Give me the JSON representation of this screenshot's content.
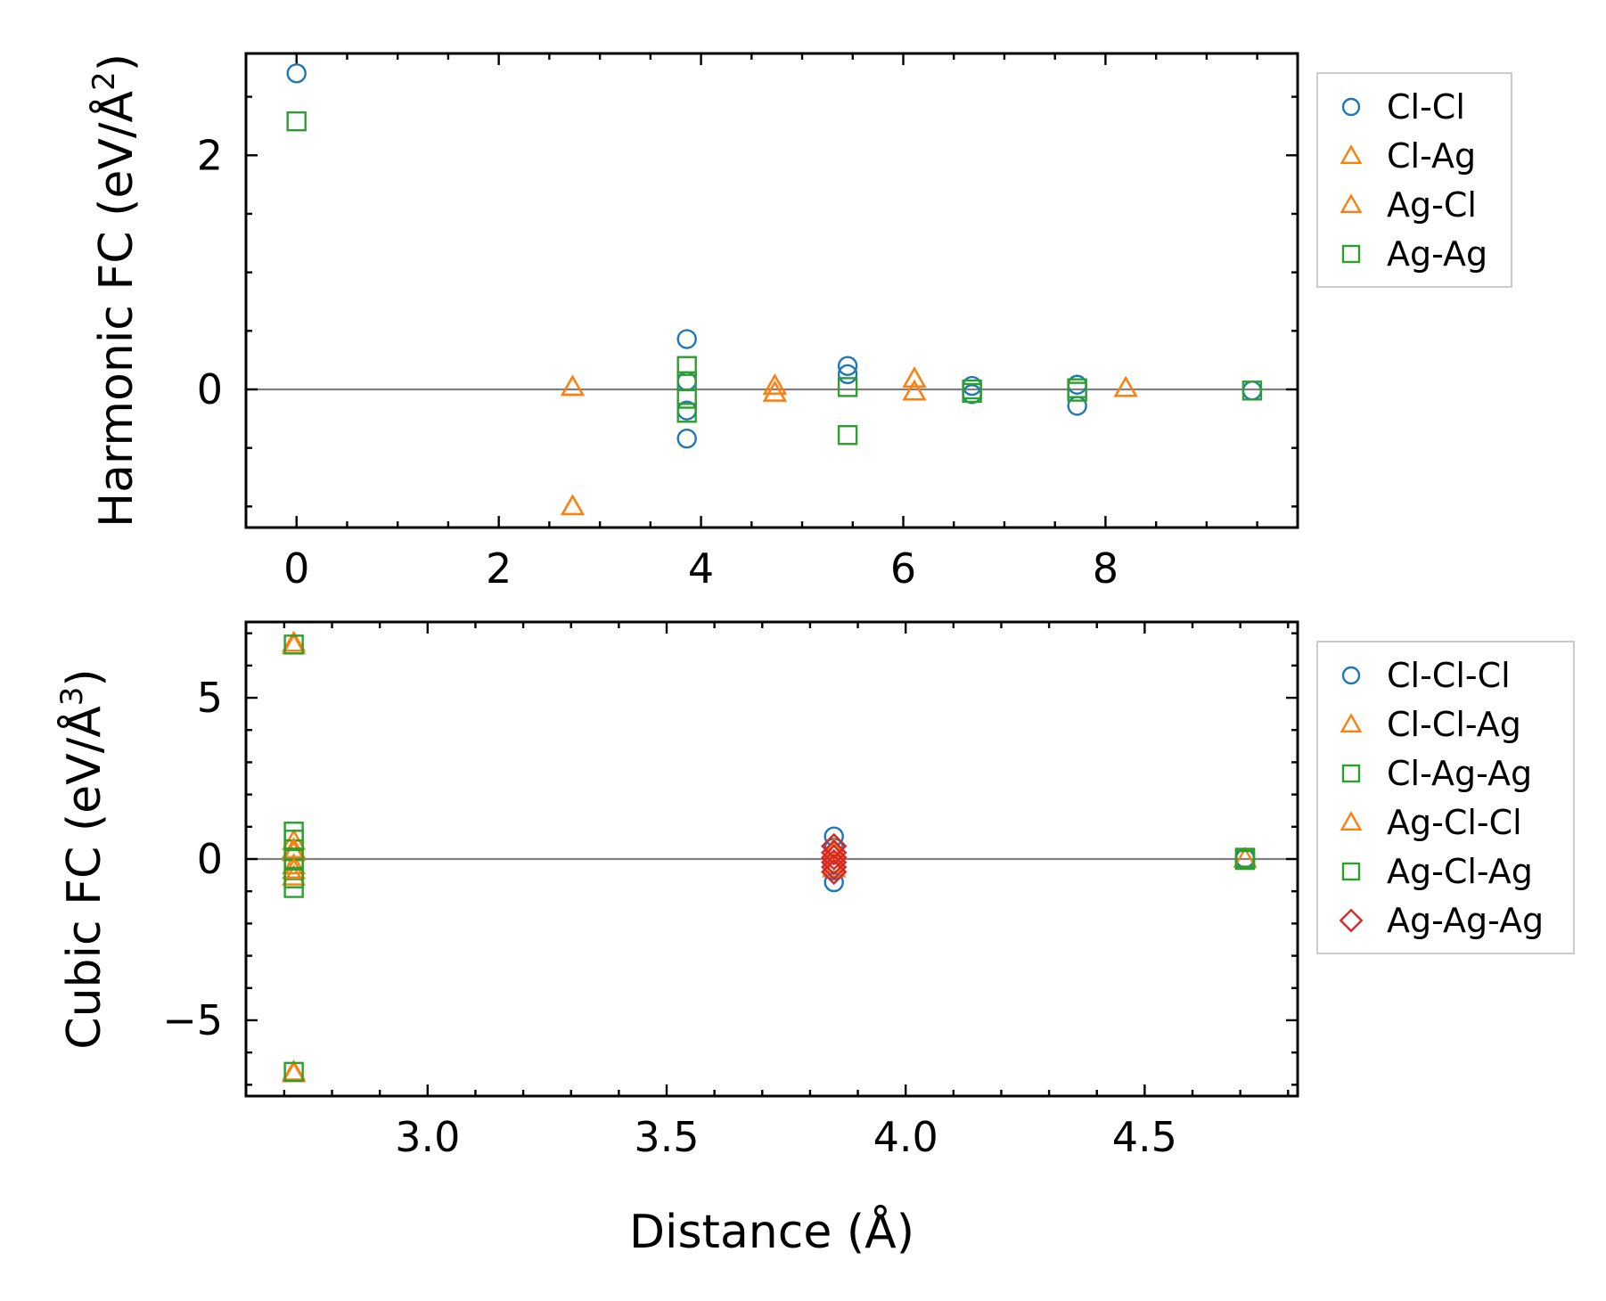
{
  "chart_data": [
    {
      "type": "scatter",
      "xlabel": "",
      "ylabel": "Harmonic FC (eV/Å²)",
      "ylabel_base": "Harmonic FC (eV/Å",
      "ylabel_sup": "2",
      "ylabel_end": ")",
      "xlim": [
        -0.5,
        9.9
      ],
      "ylim": [
        -1.18,
        2.87
      ],
      "xticks": [
        0,
        2,
        4,
        6,
        8
      ],
      "xtick_labels": [
        "0",
        "2",
        "4",
        "6",
        "8"
      ],
      "yticks": [
        0,
        2
      ],
      "ytick_labels": [
        "0",
        "2"
      ],
      "x_minor_step": 0.5,
      "y_minor_step": 0.5,
      "zero_line": true,
      "legend_position": "outside-right",
      "series": [
        {
          "name": "Cl-Cl",
          "marker": "circle",
          "color": "#1f77b4",
          "points": [
            [
              0,
              2.7
            ],
            [
              3.86,
              0.43
            ],
            [
              3.86,
              0.07
            ],
            [
              3.86,
              -0.18
            ],
            [
              3.86,
              -0.42
            ],
            [
              5.45,
              0.2
            ],
            [
              5.45,
              0.13
            ],
            [
              6.68,
              0.03
            ],
            [
              6.68,
              -0.04
            ],
            [
              7.72,
              0.04
            ],
            [
              7.72,
              -0.14
            ],
            [
              9.45,
              -0.01
            ]
          ]
        },
        {
          "name": "Cl-Ag",
          "marker": "triangle",
          "color": "#ff7f0e",
          "points": [
            [
              2.73,
              0.02
            ],
            [
              2.73,
              -1.0
            ],
            [
              4.73,
              0.03
            ],
            [
              4.73,
              -0.03
            ],
            [
              6.11,
              0.09
            ],
            [
              6.11,
              -0.02
            ],
            [
              8.2,
              0.01
            ]
          ]
        },
        {
          "name": "Ag-Cl",
          "marker": "triangle",
          "color": "#ff7f0e",
          "points": [
            [
              2.73,
              0.02
            ],
            [
              2.73,
              -1.0
            ],
            [
              4.73,
              0.03
            ],
            [
              4.73,
              -0.03
            ],
            [
              6.11,
              0.09
            ],
            [
              6.11,
              -0.02
            ],
            [
              8.2,
              0.01
            ]
          ]
        },
        {
          "name": "Ag-Ag",
          "marker": "square",
          "color": "#2ca02c",
          "points": [
            [
              0,
              2.29
            ],
            [
              3.86,
              0.2
            ],
            [
              3.86,
              0.07
            ],
            [
              3.86,
              -0.08
            ],
            [
              3.86,
              -0.2
            ],
            [
              5.45,
              0.02
            ],
            [
              5.45,
              -0.39
            ],
            [
              6.68,
              0.0
            ],
            [
              6.68,
              -0.03
            ],
            [
              7.72,
              0.01
            ],
            [
              7.72,
              -0.02
            ],
            [
              9.45,
              -0.01
            ]
          ]
        }
      ]
    },
    {
      "type": "scatter",
      "xlabel": "Distance (Å)",
      "ylabel": "Cubic FC (eV/Å³)",
      "ylabel_base": "Cubic FC (eV/Å",
      "ylabel_sup": "3",
      "ylabel_end": ")",
      "xlim": [
        2.62,
        4.82
      ],
      "ylim": [
        -7.35,
        7.35
      ],
      "xticks": [
        3.0,
        3.5,
        4.0,
        4.5
      ],
      "xtick_labels": [
        "3.0",
        "3.5",
        "4.0",
        "4.5"
      ],
      "yticks": [
        -5,
        0,
        5
      ],
      "ytick_labels": [
        "−5",
        "0",
        "5"
      ],
      "x_minor_step": 0.1,
      "y_minor_step": 1,
      "zero_line": true,
      "legend_position": "outside-right",
      "series": [
        {
          "name": "Cl-Cl-Cl",
          "marker": "circle",
          "color": "#1f77b4",
          "points": [
            [
              3.85,
              0.7
            ],
            [
              3.85,
              0.35
            ],
            [
              3.85,
              -0.35
            ],
            [
              3.85,
              -0.72
            ],
            [
              4.71,
              0.02
            ]
          ]
        },
        {
          "name": "Cl-Cl-Ag",
          "marker": "triangle",
          "color": "#ff7f0e",
          "points": [
            [
              2.72,
              6.7
            ],
            [
              2.72,
              0.55
            ],
            [
              2.72,
              0.2
            ],
            [
              2.72,
              -0.2
            ],
            [
              2.72,
              -0.55
            ],
            [
              2.72,
              -6.65
            ],
            [
              3.85,
              0.3
            ],
            [
              3.85,
              -0.3
            ],
            [
              4.71,
              0.0
            ]
          ]
        },
        {
          "name": "Cl-Ag-Ag",
          "marker": "square",
          "color": "#2ca02c",
          "points": [
            [
              2.72,
              0.85
            ],
            [
              2.72,
              0.3
            ],
            [
              2.72,
              -0.3
            ],
            [
              2.72,
              -0.9
            ],
            [
              4.71,
              0.04
            ],
            [
              4.71,
              -0.03
            ]
          ]
        },
        {
          "name": "Ag-Cl-Cl",
          "marker": "triangle",
          "color": "#ff7f0e",
          "points": [
            [
              2.72,
              6.62
            ],
            [
              2.72,
              -6.6
            ],
            [
              2.72,
              0.3
            ],
            [
              2.72,
              -0.35
            ],
            [
              3.85,
              0.15
            ],
            [
              3.85,
              -0.15
            ]
          ]
        },
        {
          "name": "Ag-Cl-Ag",
          "marker": "square",
          "color": "#2ca02c",
          "points": [
            [
              2.72,
              6.65
            ],
            [
              2.72,
              0.6
            ],
            [
              2.72,
              0.0
            ],
            [
              2.72,
              -0.6
            ],
            [
              2.72,
              -6.6
            ],
            [
              4.71,
              0.0
            ]
          ]
        },
        {
          "name": "Ag-Ag-Ag",
          "marker": "diamond",
          "color": "#d62728",
          "points": [
            [
              3.85,
              0.4
            ],
            [
              3.85,
              0.2
            ],
            [
              3.85,
              0.05
            ],
            [
              3.85,
              -0.1
            ],
            [
              3.85,
              -0.25
            ],
            [
              3.85,
              -0.4
            ]
          ]
        }
      ]
    }
  ]
}
